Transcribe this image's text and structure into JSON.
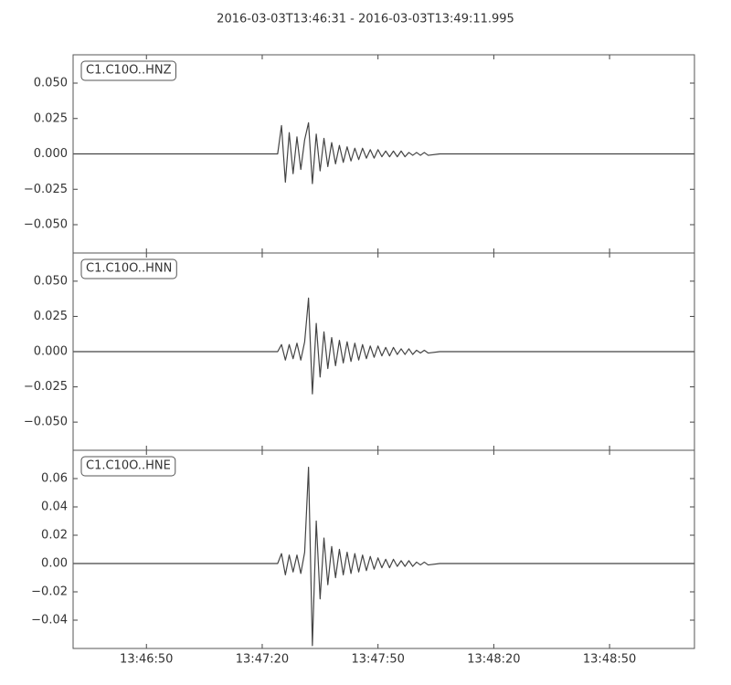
{
  "title": "2016-03-03T13:46:31  -  2016-03-03T13:49:11.995",
  "chart_data": [
    {
      "type": "line",
      "label": "C1.C10O..HNZ",
      "color": "#444444",
      "x": [
        0,
        53,
        54,
        55,
        56,
        57,
        58,
        59,
        60,
        61,
        62,
        63,
        64,
        65,
        66,
        67,
        68,
        69,
        70,
        71,
        72,
        73,
        74,
        75,
        76,
        77,
        78,
        79,
        80,
        81,
        82,
        83,
        84,
        85,
        86,
        87,
        88,
        89,
        90,
        91,
        92,
        95,
        161
      ],
      "values": [
        0,
        0,
        0.02,
        -0.02,
        0.015,
        -0.014,
        0.012,
        -0.011,
        0.01,
        0.022,
        -0.021,
        0.014,
        -0.012,
        0.011,
        -0.009,
        0.008,
        -0.007,
        0.006,
        -0.006,
        0.005,
        -0.005,
        0.004,
        -0.004,
        0.004,
        -0.003,
        0.003,
        -0.003,
        0.003,
        -0.002,
        0.002,
        -0.002,
        0.002,
        -0.002,
        0.002,
        -0.002,
        0.001,
        -0.001,
        0.001,
        -0.001,
        0.001,
        -0.001,
        0,
        0
      ],
      "xlim": [
        0,
        160.995
      ],
      "ylim": [
        -0.07,
        0.07
      ],
      "yticks": [
        {
          "value": 0.05,
          "label": "0.050"
        },
        {
          "value": 0.025,
          "label": "0.025"
        },
        {
          "value": 0,
          "label": "0.000"
        },
        {
          "value": -0.025,
          "label": "−0.025"
        },
        {
          "value": -0.05,
          "label": "−0.050"
        }
      ]
    },
    {
      "type": "line",
      "label": "C1.C10O..HNN",
      "color": "#444444",
      "x": [
        0,
        53,
        54,
        55,
        56,
        57,
        58,
        59,
        60,
        61,
        62,
        63,
        64,
        65,
        66,
        67,
        68,
        69,
        70,
        71,
        72,
        73,
        74,
        75,
        76,
        77,
        78,
        79,
        80,
        81,
        82,
        83,
        84,
        85,
        86,
        87,
        88,
        89,
        90,
        91,
        92,
        95,
        161
      ],
      "values": [
        0,
        0,
        0.005,
        -0.006,
        0.005,
        -0.005,
        0.006,
        -0.006,
        0.007,
        0.038,
        -0.03,
        0.02,
        -0.018,
        0.014,
        -0.012,
        0.01,
        -0.01,
        0.008,
        -0.008,
        0.007,
        -0.007,
        0.006,
        -0.006,
        0.005,
        -0.005,
        0.004,
        -0.004,
        0.004,
        -0.003,
        0.003,
        -0.003,
        0.003,
        -0.002,
        0.002,
        -0.002,
        0.002,
        -0.002,
        0.001,
        -0.001,
        0.001,
        -0.001,
        0,
        0
      ],
      "xlim": [
        0,
        160.995
      ],
      "ylim": [
        -0.07,
        0.07
      ],
      "yticks": [
        {
          "value": 0.05,
          "label": "0.050"
        },
        {
          "value": 0.025,
          "label": "0.025"
        },
        {
          "value": 0,
          "label": "0.000"
        },
        {
          "value": -0.025,
          "label": "−0.025"
        },
        {
          "value": -0.05,
          "label": "−0.050"
        }
      ]
    },
    {
      "type": "line",
      "label": "C1.C10O..HNE",
      "color": "#444444",
      "x": [
        0,
        53,
        54,
        55,
        56,
        57,
        58,
        59,
        60,
        61,
        62,
        63,
        64,
        65,
        66,
        67,
        68,
        69,
        70,
        71,
        72,
        73,
        74,
        75,
        76,
        77,
        78,
        79,
        80,
        81,
        82,
        83,
        84,
        85,
        86,
        87,
        88,
        89,
        90,
        91,
        92,
        95,
        161
      ],
      "values": [
        0,
        0,
        0.007,
        -0.008,
        0.006,
        -0.006,
        0.006,
        -0.007,
        0.008,
        0.068,
        -0.058,
        0.03,
        -0.025,
        0.018,
        -0.015,
        0.012,
        -0.01,
        0.01,
        -0.008,
        0.008,
        -0.007,
        0.007,
        -0.006,
        0.006,
        -0.005,
        0.005,
        -0.004,
        0.004,
        -0.003,
        0.003,
        -0.003,
        0.003,
        -0.002,
        0.002,
        -0.002,
        0.002,
        -0.002,
        0.001,
        -0.001,
        0.001,
        -0.001,
        0,
        0
      ],
      "xlim": [
        0,
        160.995
      ],
      "ylim": [
        -0.06,
        0.08
      ],
      "yticks": [
        {
          "value": 0.06,
          "label": "0.06"
        },
        {
          "value": 0.04,
          "label": "0.04"
        },
        {
          "value": 0.02,
          "label": "0.02"
        },
        {
          "value": 0,
          "label": "0.00"
        },
        {
          "value": -0.02,
          "label": "−0.02"
        },
        {
          "value": -0.04,
          "label": "−0.04"
        }
      ],
      "xticks": [
        {
          "value": 19,
          "label": "13:46:50"
        },
        {
          "value": 49,
          "label": "13:47:20"
        },
        {
          "value": 79,
          "label": "13:47:50"
        },
        {
          "value": 109,
          "label": "13:48:20"
        },
        {
          "value": 139,
          "label": "13:48:50"
        }
      ]
    }
  ]
}
